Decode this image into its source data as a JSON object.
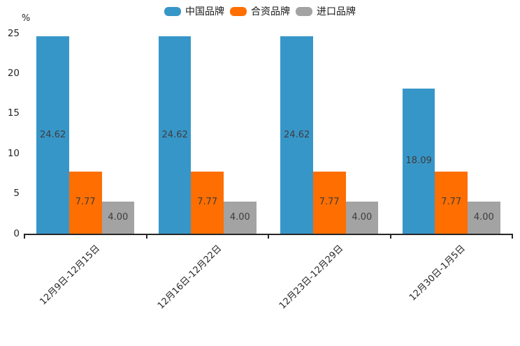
{
  "chart_data": {
    "type": "bar",
    "title": "",
    "unit_label": "%",
    "categories": [
      "12月9日-12月15日",
      "12月16日-12月22日",
      "12月23日-12月29日",
      "12月30日-1月5日"
    ],
    "series": [
      {
        "name": "中国品牌",
        "color": "#3796C8",
        "values": [
          24.62,
          24.62,
          24.62,
          18.09
        ]
      },
      {
        "name": "合资品牌",
        "color": "#FF6E00",
        "values": [
          7.77,
          7.77,
          7.77,
          7.77
        ]
      },
      {
        "name": "进口品牌",
        "color": "#A3A3A3",
        "values": [
          4.0,
          4.0,
          4.0,
          4.0
        ]
      }
    ],
    "value_label_format": "2dp",
    "y_ticks": [
      0,
      5,
      10,
      15,
      20,
      25
    ],
    "ylim": [
      0,
      25
    ],
    "grid": false,
    "legend_position": "top",
    "x_label_rotation_deg": 45
  },
  "colors": {
    "background": "#FFFFFF",
    "axis": "#262626",
    "tick_text": "#262626",
    "value_text": "#3D3D3D",
    "legend_text": "#1A1A1A"
  }
}
